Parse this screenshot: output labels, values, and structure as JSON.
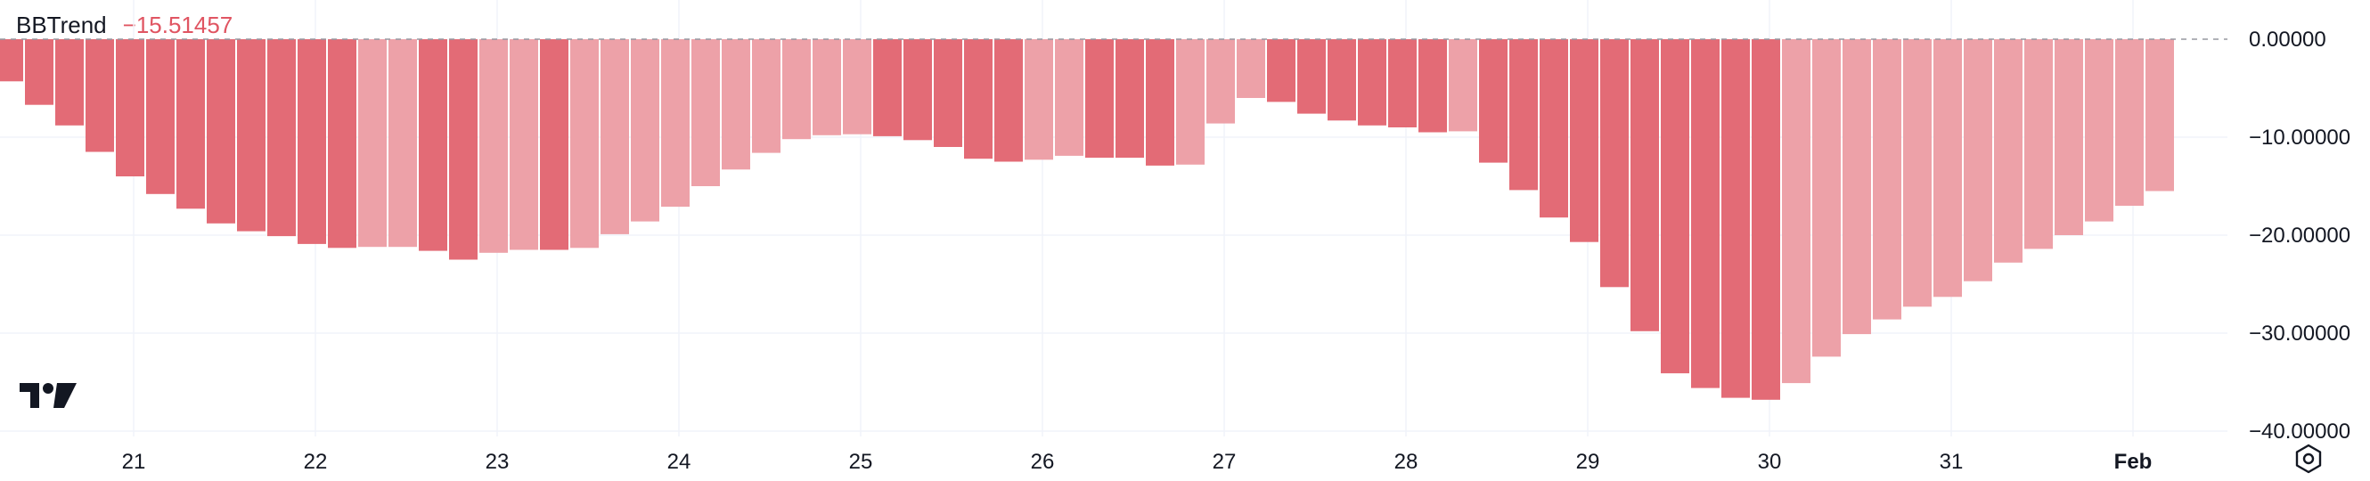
{
  "legend": {
    "name": "BBTrend",
    "value": "−15.51457"
  },
  "colors": {
    "bar_strong": "#e36b76",
    "bar_weak": "#eda1a8",
    "grid": "#f0f3fa",
    "zero_line": "#9598a1",
    "text": "#131722",
    "legend_value": "#e05562"
  },
  "icons": {
    "logo": "tradingview-logo-icon",
    "settings": "settings-hexagon-icon"
  },
  "chart_data": {
    "type": "bar",
    "y_tick_labels": [
      "0.00000",
      "−10.00000",
      "−20.00000",
      "−30.00000",
      "−40.00000"
    ],
    "y_ticks": [
      0,
      -10,
      -20,
      -30,
      -40
    ],
    "ylim": [
      -40,
      0
    ],
    "x_tick_labels": [
      "21",
      "22",
      "23",
      "24",
      "25",
      "26",
      "27",
      "28",
      "29",
      "30",
      "31",
      "Feb"
    ],
    "x_tick_bar_index": [
      4,
      10,
      16,
      22,
      28,
      34,
      40,
      46,
      52,
      58,
      64,
      70
    ],
    "grid": true,
    "series": [
      {
        "values": [
          -4.3,
          -6.7,
          -8.8,
          -11.5,
          -14.0,
          -15.8,
          -17.3,
          -18.8,
          -19.6,
          -20.1,
          -20.9,
          -21.3,
          -21.2,
          -21.2,
          -21.6,
          -22.5,
          -21.8,
          -21.5,
          -21.5,
          -21.3,
          -19.9,
          -18.6,
          -17.1,
          -15.0,
          -13.3,
          -11.6,
          -10.2,
          -9.8,
          -9.7,
          -9.9,
          -10.3,
          -11.0,
          -12.2,
          -12.5,
          -12.3,
          -11.9,
          -12.1,
          -12.1,
          -12.9,
          -12.8,
          -8.6,
          -6.0,
          -6.4,
          -7.6,
          -8.3,
          -8.8,
          -9.0,
          -9.5,
          -9.4,
          -12.6,
          -15.4,
          -18.2,
          -20.7,
          -25.3,
          -29.8,
          -34.1,
          -35.6,
          -36.6,
          -36.8,
          -35.1,
          -32.4,
          -30.1,
          -28.6,
          -27.3,
          -26.3,
          -24.7,
          -22.8,
          -21.4,
          -20.0,
          -18.6,
          -17.0,
          -15.5
        ],
        "strength": [
          1,
          1,
          1,
          1,
          1,
          1,
          1,
          1,
          1,
          1,
          1,
          1,
          0,
          0,
          1,
          1,
          0,
          0,
          1,
          0,
          0,
          0,
          0,
          0,
          0,
          0,
          0,
          0,
          0,
          1,
          1,
          1,
          1,
          1,
          0,
          0,
          1,
          1,
          1,
          0,
          0,
          0,
          1,
          1,
          1,
          1,
          1,
          1,
          0,
          1,
          1,
          1,
          1,
          1,
          1,
          1,
          1,
          1,
          1,
          0,
          0,
          0,
          0,
          0,
          0,
          0,
          0,
          0,
          0,
          0,
          0,
          0
        ]
      }
    ]
  }
}
